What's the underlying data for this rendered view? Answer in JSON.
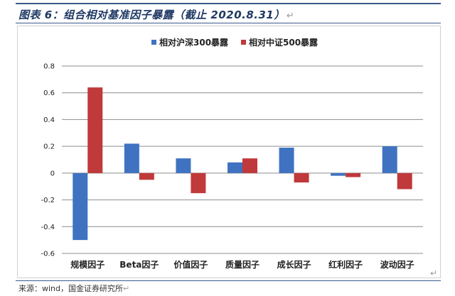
{
  "header": {
    "title": "图表 6：组合相对基准因子暴露（截止 2020.8.31）",
    "return_mark": "↵"
  },
  "footer": {
    "source": "来源：wind，国金证券研究所",
    "return_mark": "↵"
  },
  "chart_data": {
    "type": "bar",
    "categories": [
      "规模因子",
      "Beta因子",
      "价值因子",
      "质量因子",
      "成长因子",
      "红利因子",
      "波动因子"
    ],
    "series": [
      {
        "name": "相对沪深300暴露",
        "color": "#3f73c1",
        "values": [
          -0.5,
          0.22,
          0.11,
          0.08,
          0.19,
          -0.02,
          0.2
        ]
      },
      {
        "name": "相对中证500暴露",
        "color": "#c0393b",
        "values": [
          0.64,
          -0.05,
          -0.15,
          0.11,
          -0.07,
          -0.03,
          -0.12
        ]
      }
    ],
    "title": "",
    "xlabel": "",
    "ylabel": "",
    "ylim": [
      -0.6,
      0.8
    ],
    "yticks": [
      "0.8",
      "0.6",
      "0.4",
      "0.2",
      "0",
      "-0.2",
      "-0.4",
      "-0.6"
    ],
    "grid": true,
    "legend_position": "top-center"
  }
}
